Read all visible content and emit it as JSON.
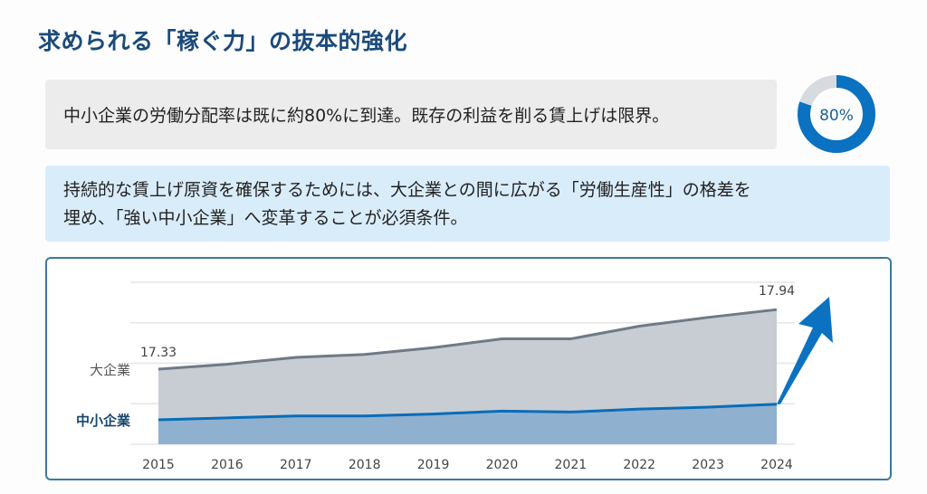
{
  "title": "求められる「稼ぐ力」の抜本的強化",
  "box1": {
    "text": "中小企業の労働分配率は既に約80%に到達。既存の利益を削る賃上げは限界。"
  },
  "donut": {
    "label": "80%",
    "value": 80,
    "color": "#0a72c0",
    "rest_color": "#d7dadf"
  },
  "box2": {
    "line1": "持続的な賃上げ原資を確保するためには、大企業との間に広がる「労働生産性」の格差を",
    "line2": "埋め、「強い中小企業」へ変革することが必須条件。"
  },
  "chart_data": {
    "type": "area",
    "categories": [
      "2015",
      "2016",
      "2017",
      "2018",
      "2019",
      "2020",
      "2021",
      "2022",
      "2023",
      "2024"
    ],
    "series": [
      {
        "name": "大企業",
        "values": [
          17.33,
          17.38,
          17.45,
          17.48,
          17.55,
          17.64,
          17.64,
          17.77,
          17.86,
          17.94
        ],
        "color": "#6f7a86",
        "fill": "#c8cdd4"
      },
      {
        "name": "中小企業",
        "values": [
          16.81,
          16.83,
          16.85,
          16.85,
          16.87,
          16.9,
          16.89,
          16.92,
          16.94,
          16.97
        ],
        "color": "#0a6cb8",
        "fill": "#8fb1cf"
      }
    ],
    "annotations": [
      {
        "x": "2015",
        "text": "17.33"
      },
      {
        "x": "2024",
        "text": "17.94"
      }
    ],
    "ylim": [
      16.56,
      18.22
    ],
    "grid": true,
    "arrow_color": "#0a72c0"
  }
}
